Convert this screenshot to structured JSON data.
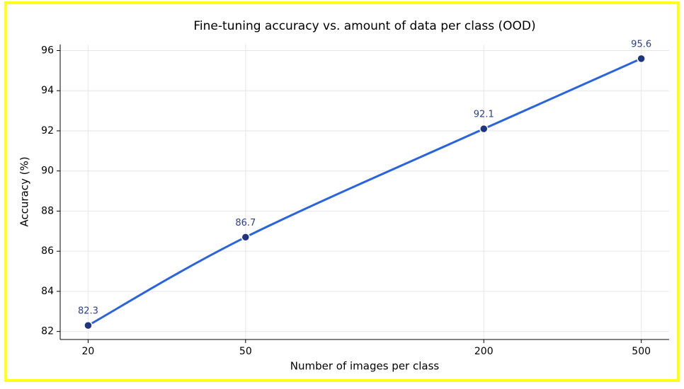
{
  "chart_data": {
    "type": "line",
    "title": "Fine-tuning accuracy vs. amount of data per class (OOD)",
    "x_label": "Number of images per class",
    "y_label": "Accuracy (%)",
    "x": [
      20,
      50,
      200,
      500
    ],
    "series": [
      {
        "name": "Accuracy",
        "color": "#2a63e0",
        "marker_color": "#1f3580",
        "values": [
          82.3,
          86.7,
          92.1,
          95.6
        ]
      }
    ],
    "xscale": "log",
    "xlim": [
      17,
      588
    ],
    "xticks": [
      20,
      50,
      200,
      500
    ],
    "ylim": [
      81.6,
      96.3
    ],
    "yticks": [
      82,
      84,
      86,
      88,
      90,
      92,
      94,
      96
    ],
    "grid": true
  }
}
